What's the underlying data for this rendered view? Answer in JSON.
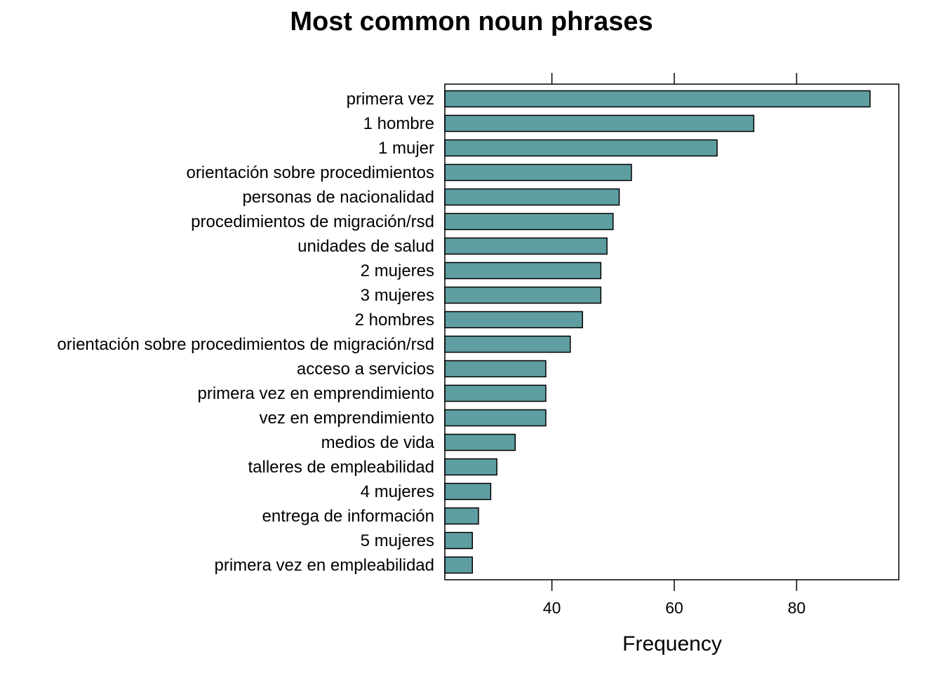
{
  "chart_data": {
    "type": "bar",
    "orientation": "horizontal",
    "title": "Most common noun phrases",
    "xlabel": "Frequency",
    "ylabel": "",
    "xlim": [
      22.5,
      96.7
    ],
    "xticks": [
      40,
      60,
      80
    ],
    "grid": false,
    "legend": "none",
    "bar_color": "#5F9EA0",
    "categories": [
      "primera vez",
      "1 hombre",
      "1 mujer",
      "orientación sobre procedimientos",
      "personas de nacionalidad",
      "procedimientos de migración/rsd",
      "unidades de salud",
      "2 mujeres",
      "3 mujeres",
      "2 hombres",
      "orientación sobre procedimientos de migración/rsd",
      "acceso a servicios",
      "primera vez en emprendimiento",
      "vez en emprendimiento",
      "medios de vida",
      "talleres de empleabilidad",
      "4 mujeres",
      "entrega de información",
      "5 mujeres",
      "primera vez en empleabilidad"
    ],
    "values": [
      92,
      73,
      67,
      53,
      51,
      50,
      49,
      48,
      48,
      45,
      43,
      39,
      39,
      39,
      34,
      31,
      30,
      28,
      27,
      27
    ]
  }
}
